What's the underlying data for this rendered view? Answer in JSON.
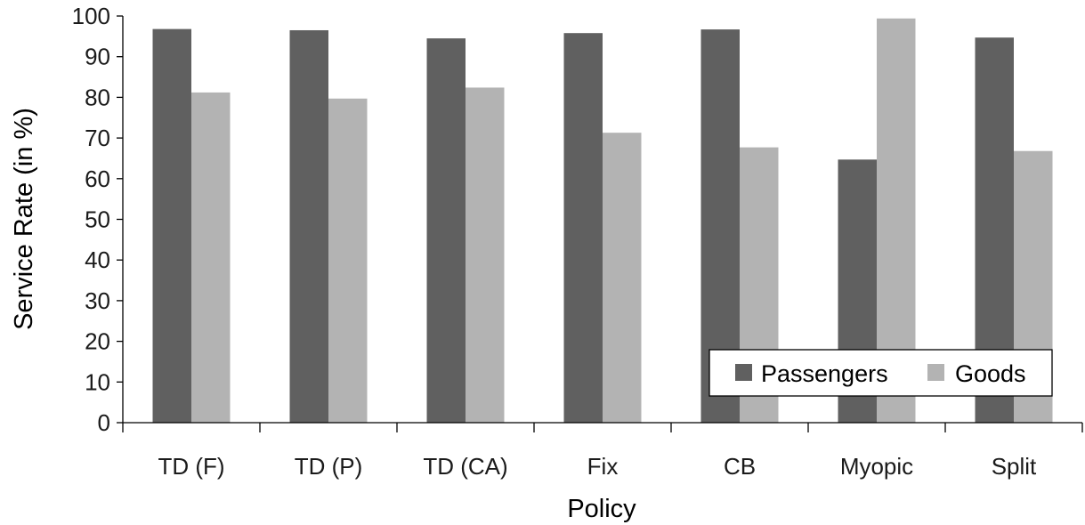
{
  "chart_data": {
    "type": "bar",
    "title": "",
    "xlabel": "Policy",
    "ylabel": "Service Rate (in %)",
    "ylim": [
      0,
      100
    ],
    "yticks": [
      0,
      10,
      20,
      30,
      40,
      50,
      60,
      70,
      80,
      90,
      100
    ],
    "grid": false,
    "legend_position": "bottom-right",
    "categories": [
      "TD (F)",
      "TD (P)",
      "TD (CA)",
      "Fix",
      "CB",
      "Myopic",
      "Split"
    ],
    "series": [
      {
        "name": "Passengers",
        "color": "#606060",
        "values": [
          96.8,
          96.5,
          94.5,
          95.8,
          96.7,
          64.7,
          94.7
        ]
      },
      {
        "name": "Goods",
        "color": "#b3b3b3",
        "values": [
          81.2,
          79.7,
          82.4,
          71.3,
          67.7,
          99.4,
          66.8
        ]
      }
    ]
  }
}
